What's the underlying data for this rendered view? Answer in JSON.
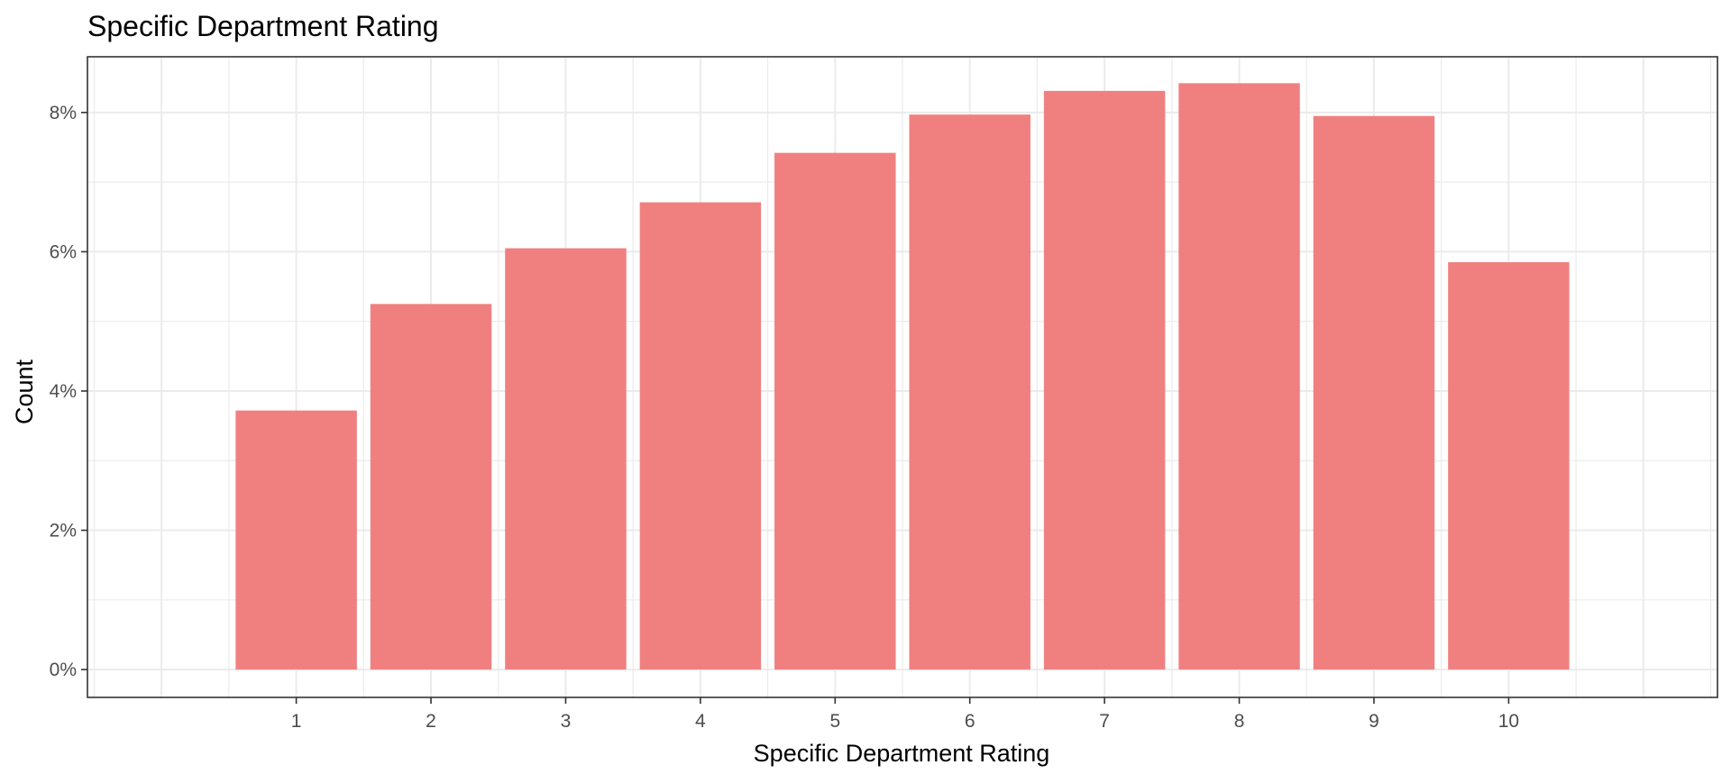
{
  "chart_data": {
    "type": "bar",
    "title": "Specific Department Rating",
    "xlabel": "Specific Department Rating",
    "ylabel": "Count",
    "categories": [
      "1",
      "2",
      "3",
      "4",
      "5",
      "6",
      "7",
      "8",
      "9",
      "10"
    ],
    "values": [
      3.72,
      5.25,
      6.05,
      6.71,
      7.42,
      7.97,
      8.31,
      8.42,
      7.95,
      5.85
    ],
    "value_unit": "%",
    "ylim": [
      -0.4,
      8.8
    ],
    "xlim": [
      -0.55,
      11.55
    ],
    "y_ticks": [
      0,
      2,
      4,
      6,
      8
    ],
    "y_tick_labels": [
      "0%",
      "2%",
      "4%",
      "6%",
      "8%"
    ],
    "grid": true,
    "bar_color": "#F08080",
    "grid_color": "#EBEBEB",
    "panel_border_color": "#333333",
    "theme": "bw"
  }
}
